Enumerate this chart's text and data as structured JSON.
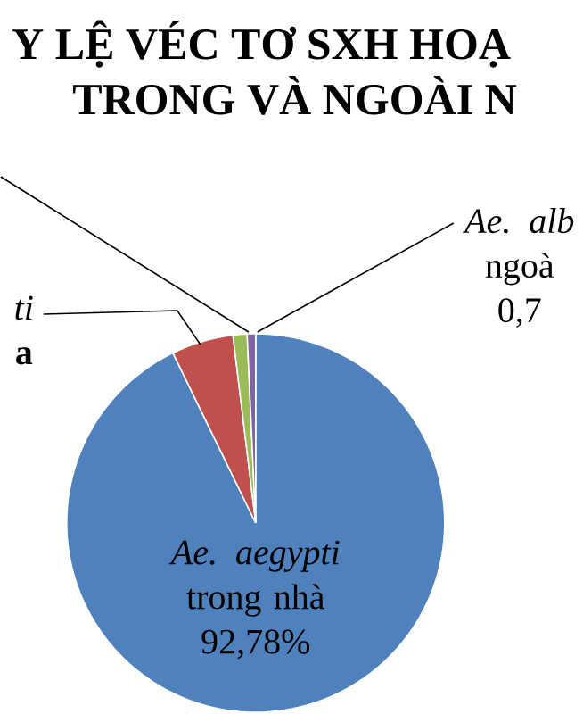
{
  "chart_data": {
    "type": "pie",
    "title": "Y LỆ VÉC TƠ SXH HOẠ",
    "subtitle": "TRONG VÀ NGOÀI N",
    "categories": [
      "*Ae. aegypti* trong nhà",
      "*ti* **a**",
      null,
      "*Ae. alb* ngoà"
    ],
    "values": [
      92.78,
      5.3,
      1.2,
      0.72
    ],
    "colors": [
      "#4f81bd",
      "#c0504d",
      "#9bbb59",
      "#8064a2"
    ],
    "value_labels": [
      "92,78%",
      null,
      null,
      "0,7"
    ]
  }
}
